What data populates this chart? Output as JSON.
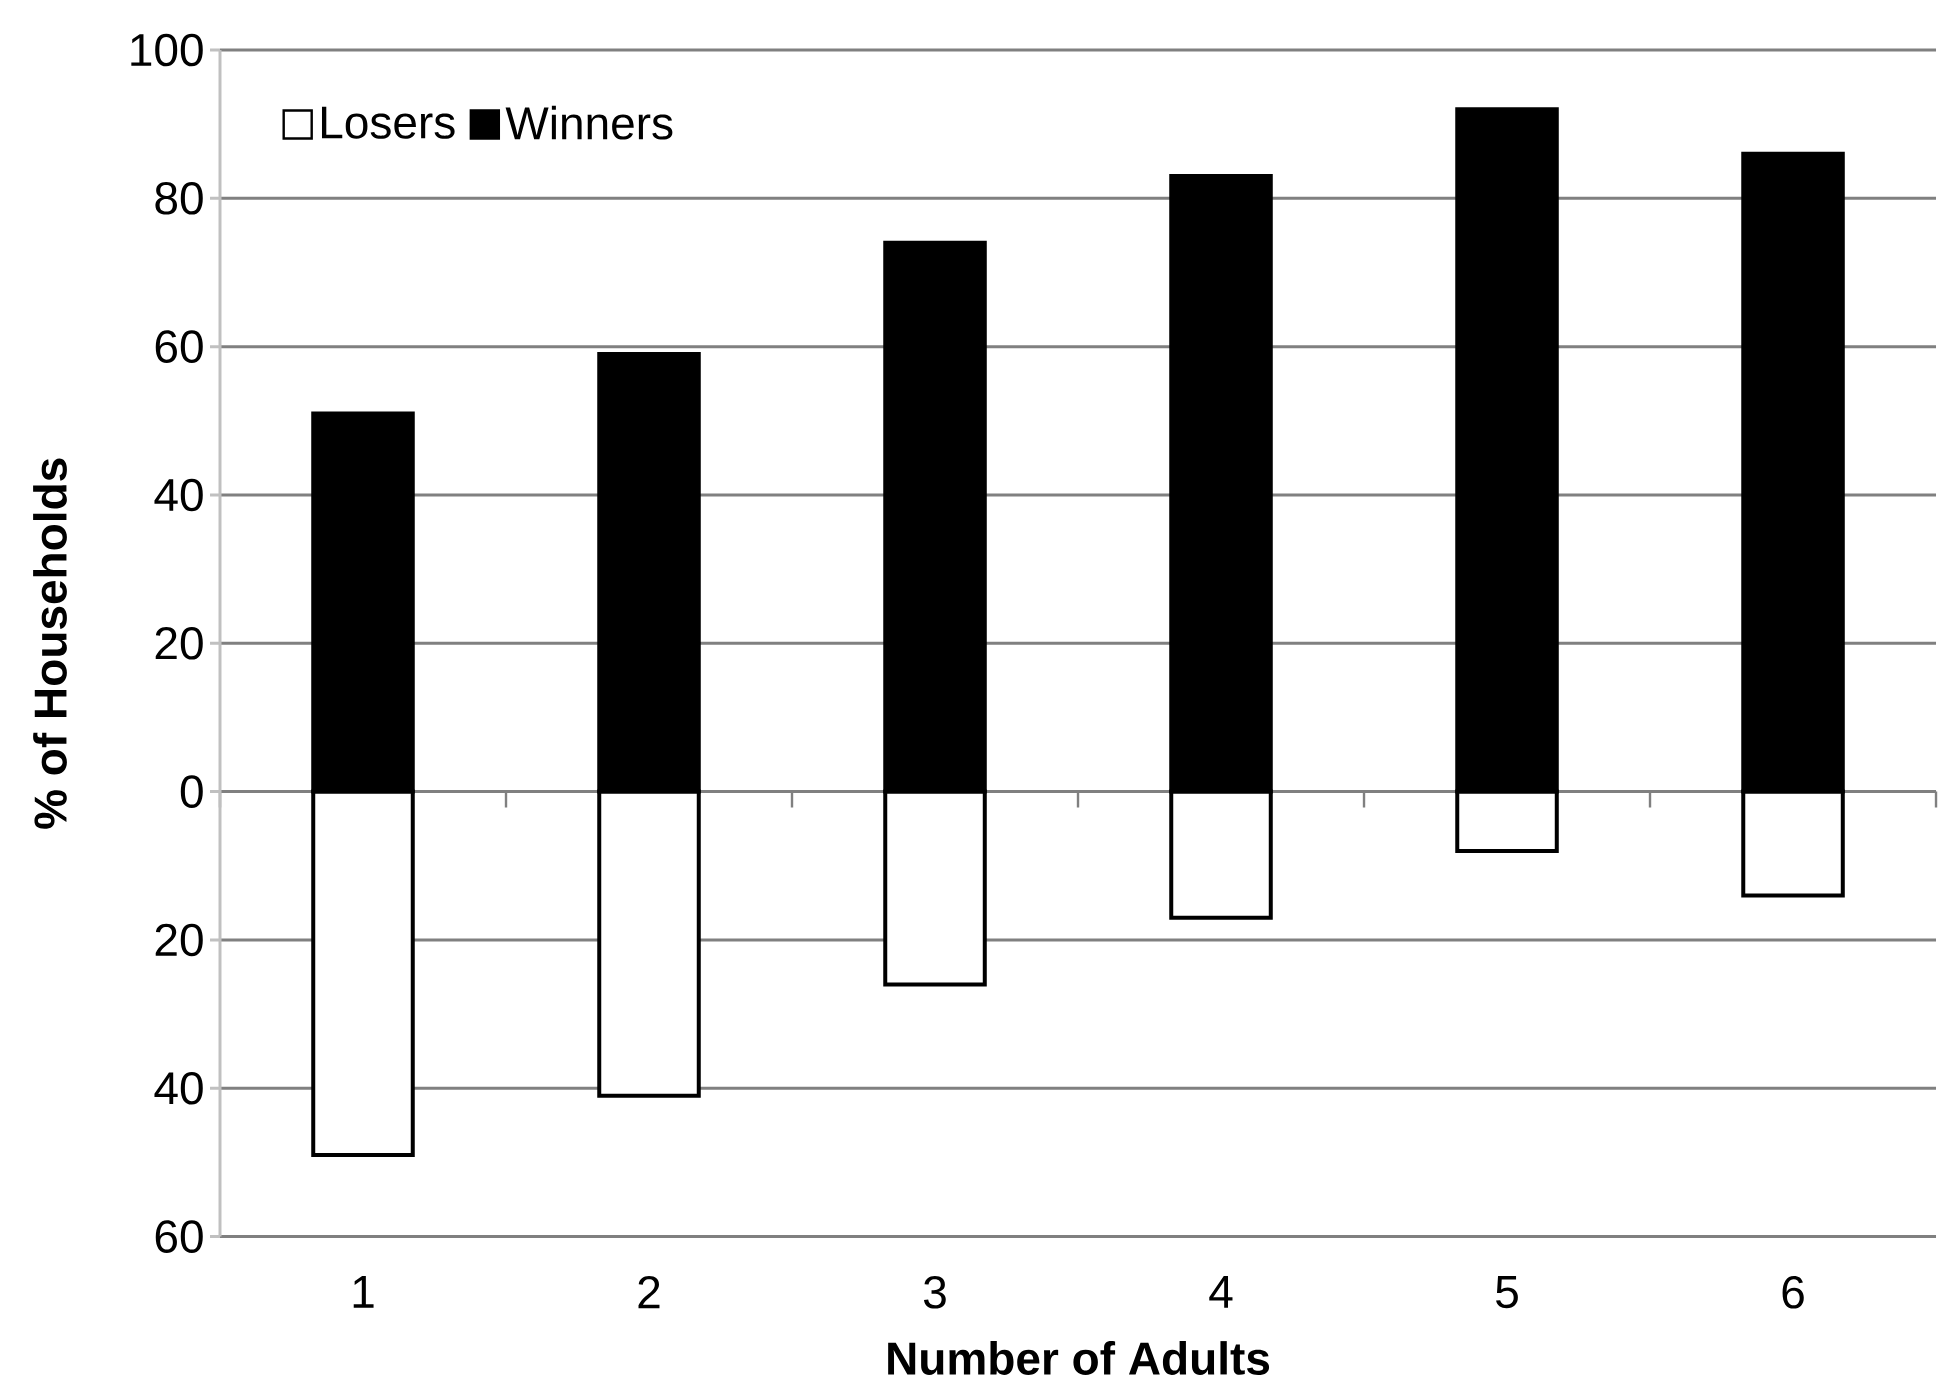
{
  "chart_data": {
    "type": "bar",
    "xlabel": "Number of Adults",
    "ylabel": "% of Households",
    "categories": [
      "1",
      "2",
      "3",
      "4",
      "5",
      "6"
    ],
    "stacked": true,
    "series": [
      {
        "name": "Losers",
        "color": "#ffffff",
        "values": [
          -49,
          -41,
          -26,
          -17,
          -8,
          -14
        ]
      },
      {
        "name": "Winners",
        "color": "#000000",
        "values": [
          51,
          59,
          74,
          83,
          92,
          86
        ]
      }
    ],
    "ylim": [
      -60,
      100
    ],
    "yticks": [
      {
        "value": -60,
        "label": "60"
      },
      {
        "value": -40,
        "label": "40"
      },
      {
        "value": -20,
        "label": "20"
      },
      0,
      20,
      40,
      60,
      80,
      100
    ],
    "grid": "y",
    "legend": "top left"
  }
}
